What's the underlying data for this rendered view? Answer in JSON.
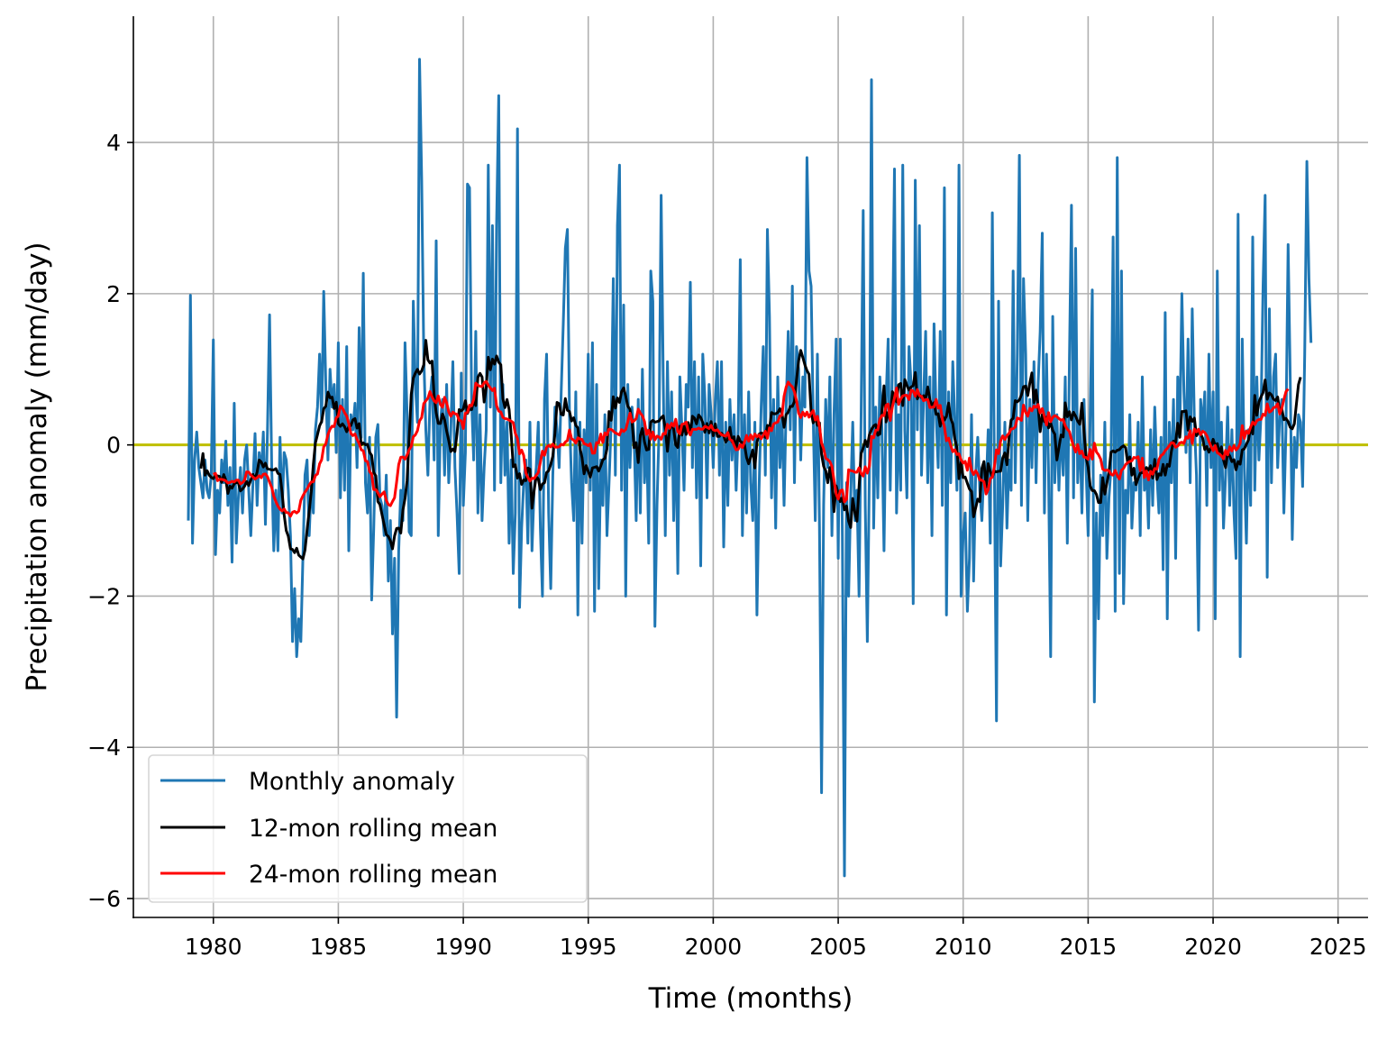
{
  "chart_data": {
    "type": "line",
    "xlabel": "Time (months)",
    "ylabel": "Precipitation anomaly (mm/day)",
    "xlim": [
      1976.8,
      2026.2
    ],
    "ylim": [
      -6.25,
      5.67
    ],
    "xticks": [
      1980,
      1985,
      1990,
      1995,
      2000,
      2005,
      2010,
      2015,
      2020,
      2025
    ],
    "xtick_labels": [
      "1980",
      "1985",
      "1990",
      "1995",
      "2000",
      "2005",
      "2010",
      "2015",
      "2020",
      "2025"
    ],
    "yticks": [
      -6,
      -4,
      -2,
      0,
      2,
      4
    ],
    "ytick_labels": [
      "−6",
      "−4",
      "−2",
      "0",
      "2",
      "4"
    ],
    "grid": true,
    "legend_position": "lower-left",
    "reference_line": {
      "y": 0,
      "color": "#bfbf00"
    },
    "series": [
      {
        "name": "Monthly anomaly",
        "color": "#1f77b4",
        "kind": "monthly"
      },
      {
        "name": "12-mon rolling mean",
        "color": "#000000",
        "kind": "rolling",
        "window": 12
      },
      {
        "name": "24-mon rolling mean",
        "color": "#ff0000",
        "kind": "rolling",
        "window": 24
      }
    ],
    "monthly_anomaly": [
      {
        "year": 1979,
        "values": [
          -1.0,
          1.98,
          -1.3,
          -0.2,
          0.17,
          -0.3,
          -0.5,
          -0.7,
          -0.2,
          -0.6,
          -0.7,
          -0.4
        ]
      },
      {
        "year": 1980,
        "values": [
          1.39,
          -1.45,
          -0.6,
          -0.9,
          -0.2,
          -0.5,
          0.05,
          -0.8,
          -0.3,
          -1.55,
          0.55,
          -1.3
        ]
      },
      {
        "year": 1981,
        "values": [
          -0.7,
          -0.3,
          -0.9,
          -0.2,
          0.0,
          -0.6,
          -1.2,
          -0.5,
          0.15,
          -0.8,
          -0.1,
          -0.4
        ]
      },
      {
        "year": 1982,
        "values": [
          0.17,
          -1.05,
          0.2,
          1.72,
          -0.3,
          -1.4,
          -0.6,
          -1.4,
          0.1,
          -0.9,
          -0.1,
          -0.2
        ]
      },
      {
        "year": 1983,
        "values": [
          -0.6,
          -1.2,
          -2.6,
          -1.9,
          -2.8,
          -2.3,
          -2.6,
          -1.5,
          -0.4,
          -0.2,
          -1.2,
          -0.5
        ]
      },
      {
        "year": 1984,
        "values": [
          -0.9,
          0.2,
          0.5,
          1.2,
          0.3,
          2.03,
          0.8,
          -0.2,
          1.0,
          0.5,
          0.8,
          -0.1
        ]
      },
      {
        "year": 1985,
        "values": [
          1.35,
          -0.7,
          0.6,
          -0.6,
          1.3,
          -1.4,
          0.4,
          0.2,
          0.55,
          -0.3,
          1.55,
          0.1
        ]
      },
      {
        "year": 1986,
        "values": [
          2.27,
          -0.5,
          -0.9,
          0.1,
          -2.05,
          -1.1,
          0.1,
          0.27,
          -0.7,
          -0.8,
          -1.2,
          -0.4
        ]
      },
      {
        "year": 1987,
        "values": [
          -1.8,
          -1.0,
          -2.5,
          -1.5,
          -3.6,
          -1.4,
          -0.6,
          -1.0,
          1.35,
          0.4,
          -1.15,
          -1.2
        ]
      },
      {
        "year": 1988,
        "values": [
          1.9,
          0.8,
          0.3,
          5.1,
          3.5,
          1.2,
          0.2,
          -0.4,
          0.6,
          0.9,
          -0.2,
          2.7
        ]
      },
      {
        "year": 1989,
        "values": [
          -1.2,
          0.3,
          0.6,
          -0.4,
          0.8,
          -0.5,
          0.2,
          1.1,
          -0.3,
          -0.9,
          -1.7,
          0.95
        ]
      },
      {
        "year": 1990,
        "values": [
          -0.8,
          -0.1,
          3.45,
          3.4,
          0.6,
          -0.2,
          1.5,
          -0.9,
          0.4,
          -1.0,
          -0.3,
          0.2
        ]
      },
      {
        "year": 1991,
        "values": [
          3.7,
          0.5,
          2.9,
          -0.6,
          2.9,
          4.62,
          -0.5,
          0.8,
          -0.4,
          0.3,
          -1.3,
          -0.2
        ]
      },
      {
        "year": 1992,
        "values": [
          -1.7,
          -0.9,
          4.18,
          -2.15,
          -1.1,
          -0.5,
          -0.2,
          -1.3,
          0.3,
          -1.4,
          -0.6,
          -0.3
        ]
      },
      {
        "year": 1993,
        "values": [
          0.3,
          -1.1,
          -2.0,
          0.6,
          1.2,
          -0.9,
          -1.9,
          -0.4,
          0.5,
          0.2,
          -0.3,
          0.7
        ]
      },
      {
        "year": 1994,
        "values": [
          1.6,
          2.6,
          2.85,
          0.4,
          -0.5,
          -1.0,
          0.7,
          -2.25,
          0.3,
          -1.3,
          0.2,
          -0.5
        ]
      },
      {
        "year": 1995,
        "values": [
          1.2,
          -0.6,
          1.35,
          -2.2,
          0.8,
          -1.9,
          -0.2,
          -0.8,
          0.4,
          -1.2,
          -0.5,
          0.3
        ]
      },
      {
        "year": 1996,
        "values": [
          2.2,
          -0.4,
          2.9,
          3.7,
          -0.6,
          1.85,
          -2.0,
          0.8,
          -0.3,
          0.5,
          0.1,
          -1.0
        ]
      },
      {
        "year": 1997,
        "values": [
          0.6,
          -0.9,
          1.0,
          -0.5,
          0.2,
          -1.3,
          2.3,
          1.9,
          -2.4,
          -0.8,
          0.2,
          3.3
        ]
      },
      {
        "year": 1998,
        "values": [
          0.9,
          -1.2,
          1.1,
          -0.4,
          0.7,
          -1.0,
          0.3,
          -1.7,
          0.9,
          0.2,
          -0.6,
          0.8
        ]
      },
      {
        "year": 1999,
        "values": [
          0.5,
          2.15,
          -0.3,
          1.1,
          -0.7,
          0.9,
          -1.6,
          1.2,
          0.6,
          -0.7,
          0.8,
          0.4
        ]
      },
      {
        "year": 2000,
        "values": [
          -0.3,
          0.6,
          1.1,
          -0.4,
          1.1,
          -1.35,
          0.3,
          -0.8,
          0.6,
          -0.2,
          0.4,
          -0.6
        ]
      },
      {
        "year": 2001,
        "values": [
          0.2,
          2.45,
          -1.2,
          0.4,
          -0.9,
          0.7,
          -0.5,
          -1.0,
          0.3,
          -2.25,
          -0.6,
          0.5
        ]
      },
      {
        "year": 2002,
        "values": [
          1.3,
          -0.4,
          2.85,
          1.7,
          -0.7,
          0.6,
          -1.1,
          0.9,
          -0.3,
          0.4,
          -0.8,
          0.5
        ]
      },
      {
        "year": 2003,
        "values": [
          1.5,
          0.2,
          2.1,
          -0.5,
          1.3,
          1.0,
          -0.2,
          0.9,
          0.5,
          3.8,
          2.3,
          2.1
        ]
      },
      {
        "year": 2004,
        "values": [
          0.4,
          -1.0,
          1.2,
          -1.1,
          -4.6,
          -0.8,
          0.6,
          -0.3,
          0.9,
          -1.2,
          0.4,
          1.4
        ]
      },
      {
        "year": 2005,
        "values": [
          -1.5,
          1.4,
          -1.2,
          -5.7,
          -0.5,
          -2.0,
          -0.7,
          0.3,
          -1.0,
          -0.6,
          -2.0,
          0.4
        ]
      },
      {
        "year": 2006,
        "values": [
          3.1,
          -0.8,
          -2.6,
          -0.3,
          4.83,
          -1.1,
          0.5,
          -0.7,
          0.9,
          0.2,
          -1.4,
          0.6
        ]
      },
      {
        "year": 2007,
        "values": [
          1.4,
          -0.6,
          1.1,
          3.65,
          -0.9,
          0.4,
          -0.6,
          3.7,
          0.2,
          -0.7,
          1.3,
          0.8
        ]
      },
      {
        "year": 2008,
        "values": [
          -2.1,
          3.5,
          0.2,
          2.9,
          -0.4,
          0.6,
          1.5,
          -0.5,
          0.9,
          -1.2,
          1.6,
          0.4
        ]
      },
      {
        "year": 2009,
        "values": [
          -0.3,
          1.5,
          -0.8,
          3.4,
          -2.25,
          0.7,
          -0.5,
          1.1,
          0.3,
          -0.6,
          3.7,
          -2.0
        ]
      },
      {
        "year": 2010,
        "values": [
          -1.2,
          -0.9,
          -2.2,
          -1.5,
          0.4,
          -1.8,
          -0.4,
          0.1,
          -0.6,
          -1.0,
          -0.3,
          -0.6
        ]
      },
      {
        "year": 2011,
        "values": [
          0.2,
          -1.3,
          3.07,
          -0.4,
          -3.65,
          1.9,
          -1.6,
          -0.8,
          0.3,
          -1.1,
          -0.2,
          -0.6
        ]
      },
      {
        "year": 2012,
        "values": [
          2.3,
          -0.5,
          1.2,
          3.83,
          -0.8,
          2.2,
          1.2,
          -1.0,
          0.6,
          -0.3,
          1.1,
          -0.5
        ]
      },
      {
        "year": 2013,
        "values": [
          0.8,
          1.5,
          2.8,
          -0.9,
          1.2,
          -0.4,
          -2.8,
          1.7,
          -0.5,
          0.4,
          -0.6,
          0.3
        ]
      },
      {
        "year": 2014,
        "values": [
          -0.4,
          0.9,
          -1.3,
          1.1,
          3.17,
          -0.7,
          2.6,
          -0.5,
          0.3,
          -0.9,
          0.6,
          -0.3
        ]
      },
      {
        "year": 2015,
        "values": [
          -1.2,
          0.4,
          2.05,
          -3.4,
          -0.9,
          -2.3,
          -0.4,
          -1.2,
          0.3,
          -1.5,
          -0.7,
          -0.3
        ]
      },
      {
        "year": 2016,
        "values": [
          2.75,
          -2.2,
          3.8,
          -1.7,
          2.3,
          -2.1,
          -0.6,
          -0.9,
          0.4,
          -1.1,
          -0.5,
          -0.6
        ]
      },
      {
        "year": 2017,
        "values": [
          0.3,
          -1.2,
          0.9,
          -0.6,
          -0.3,
          -1.1,
          0.2,
          -0.8,
          0.5,
          -0.4,
          -0.9,
          0.1
        ]
      },
      {
        "year": 2018,
        "values": [
          -1.65,
          1.75,
          -2.3,
          0.3,
          -0.5,
          0.6,
          -1.5,
          0.9,
          0.2,
          2.0,
          0.7,
          -0.1
        ]
      },
      {
        "year": 2019,
        "values": [
          1.4,
          -0.5,
          1.8,
          0.3,
          -0.4,
          -2.45,
          0.6,
          0.2,
          0.7,
          -0.8,
          1.2,
          -0.3
        ]
      },
      {
        "year": 2020,
        "values": [
          0.7,
          -2.3,
          2.3,
          -0.6,
          0.3,
          -1.1,
          -0.4,
          0.5,
          -0.8,
          0.2,
          -0.9,
          -1.5
        ]
      },
      {
        "year": 2021,
        "values": [
          3.05,
          -2.8,
          1.4,
          -0.3,
          -1.3,
          0.2,
          -0.8,
          2.75,
          -0.6,
          0.9,
          -0.2,
          0.4
        ]
      },
      {
        "year": 2022,
        "values": [
          2.1,
          3.3,
          -1.75,
          1.8,
          -0.5,
          0.9,
          1.2,
          -0.3,
          0.4,
          0.6,
          -0.9,
          0.2
        ]
      },
      {
        "year": 2023,
        "values": [
          2.65,
          0.9,
          -1.25,
          0.1,
          -0.3,
          0.4,
          0.3,
          -0.55,
          1.2,
          3.75,
          2.2,
          1.35
        ]
      }
    ]
  }
}
